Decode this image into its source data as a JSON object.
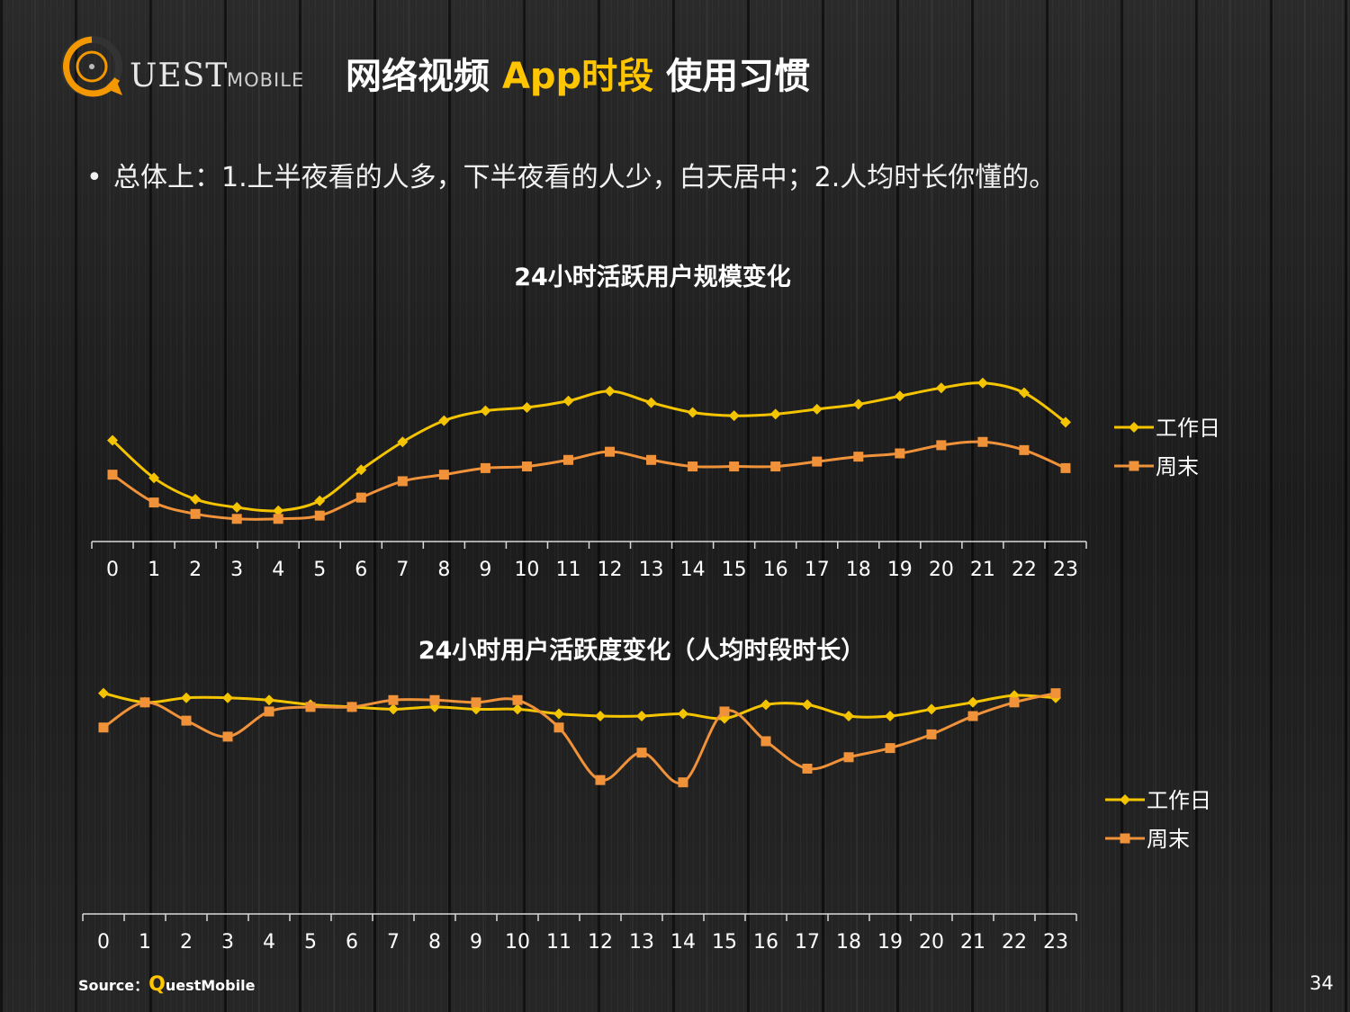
{
  "logo": {
    "text": "UEST",
    "sub": "MOBILE"
  },
  "title": {
    "part1": "网络视频 ",
    "highlight": "App时段",
    "part2": " 使用习惯"
  },
  "bullet": "总体上：1.上半夜看的人多，下半夜看的人少，白天居中；2.人均时长你懂的。",
  "colors": {
    "weekday": "#f5c400",
    "weekend": "#f0923a",
    "highlight": "#ffc600"
  },
  "chart_data": [
    {
      "type": "line",
      "title": "24小时活跃用户规模变化",
      "categories": [
        "0",
        "1",
        "2",
        "3",
        "4",
        "5",
        "6",
        "7",
        "8",
        "9",
        "10",
        "11",
        "12",
        "13",
        "14",
        "15",
        "16",
        "17",
        "18",
        "19",
        "20",
        "21",
        "22",
        "23"
      ],
      "ylim": [
        0,
        100
      ],
      "grid": false,
      "legend": "right",
      "series": [
        {
          "name": "工作日",
          "marker": "diamond",
          "color": "#f5c400",
          "values": [
            58,
            35,
            22,
            17,
            15,
            21,
            40,
            57,
            70,
            76,
            78,
            82,
            88,
            81,
            75,
            73,
            74,
            77,
            80,
            85,
            90,
            93,
            87,
            69
          ]
        },
        {
          "name": "周末",
          "marker": "square",
          "color": "#f0923a",
          "values": [
            37,
            20,
            13,
            10,
            10,
            12,
            23,
            33,
            37,
            41,
            42,
            46,
            51,
            46,
            42,
            42,
            42,
            45,
            48,
            50,
            55,
            57,
            52,
            41
          ]
        }
      ]
    },
    {
      "type": "line",
      "title": "24小时用户活跃度变化（人均时段时长）",
      "categories": [
        "0",
        "1",
        "2",
        "3",
        "4",
        "5",
        "6",
        "7",
        "8",
        "9",
        "10",
        "11",
        "12",
        "13",
        "14",
        "15",
        "16",
        "17",
        "18",
        "19",
        "20",
        "21",
        "22",
        "23"
      ],
      "ylim": [
        0,
        100
      ],
      "grid": false,
      "legend": "right",
      "series": [
        {
          "name": "工作日",
          "marker": "diamond",
          "color": "#f5c400",
          "values": [
            84,
            80,
            82,
            82,
            81,
            79,
            78,
            77,
            78,
            77,
            77,
            75,
            74,
            74,
            75,
            73,
            79,
            79,
            74,
            74,
            77,
            80,
            83,
            82
          ]
        },
        {
          "name": "周末",
          "marker": "square",
          "color": "#f0923a",
          "values": [
            69,
            80,
            72,
            65,
            76,
            78,
            78,
            81,
            81,
            80,
            81,
            69,
            46,
            58,
            45,
            76,
            63,
            51,
            56,
            60,
            66,
            74,
            80,
            84
          ]
        }
      ]
    }
  ],
  "source": {
    "label": "Source：",
    "q": "Q",
    "rest": "uestMobile"
  },
  "page_number": "34"
}
